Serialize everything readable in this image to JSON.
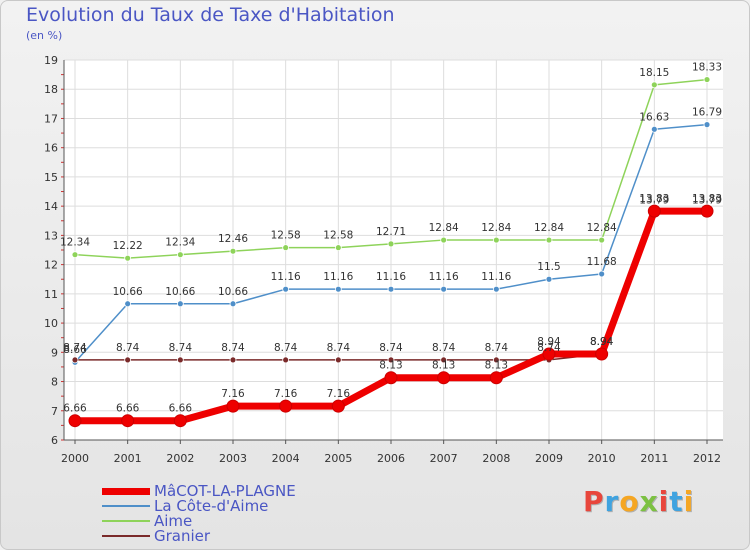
{
  "chart_data": {
    "type": "line",
    "title": "Evolution du Taux de Taxe d'Habitation",
    "subtitle": "(en %)",
    "x": [
      "2000",
      "2001",
      "2002",
      "2003",
      "2004",
      "2005",
      "2006",
      "2007",
      "2008",
      "2009",
      "2010",
      "2011",
      "2012"
    ],
    "ylim": [
      6,
      19
    ],
    "yticks": [
      6,
      7,
      8,
      9,
      10,
      11,
      12,
      13,
      14,
      15,
      16,
      17,
      18,
      19
    ],
    "grid": true,
    "legend_position": "bottom-left",
    "series": [
      {
        "name": "MâCOT-LA-PLAGNE",
        "color": "#ee0000",
        "values": [
          6.66,
          6.66,
          6.66,
          7.16,
          7.16,
          7.16,
          8.13,
          8.13,
          8.13,
          8.94,
          8.94,
          13.83,
          13.83
        ],
        "labels": [
          "6.66",
          "6.66",
          "6.66",
          "7.16",
          "7.16",
          "7.16",
          "8.13",
          "8.13",
          "8.13",
          "8.94",
          "8.94",
          "13.83",
          "13.83"
        ]
      },
      {
        "name": "La Côte-d'Aime",
        "color": "#4f8fc9",
        "values": [
          8.66,
          10.66,
          10.66,
          10.66,
          11.16,
          11.16,
          11.16,
          11.16,
          11.16,
          11.5,
          11.68,
          16.63,
          16.79
        ],
        "labels": [
          "8.66",
          "10.66",
          "10.66",
          "10.66",
          "11.16",
          "11.16",
          "11.16",
          "11.16",
          "11.16",
          "11.5",
          "11.68",
          "16.63",
          "16.79"
        ]
      },
      {
        "name": "Aime",
        "color": "#8ed35a",
        "values": [
          12.34,
          12.22,
          12.34,
          12.46,
          12.58,
          12.58,
          12.71,
          12.84,
          12.84,
          12.84,
          12.84,
          18.15,
          18.33
        ],
        "labels": [
          "12.34",
          "12.22",
          "12.34",
          "12.46",
          "12.58",
          "12.58",
          "12.71",
          "12.84",
          "12.84",
          "12.84",
          "12.84",
          "18.15",
          "18.33"
        ]
      },
      {
        "name": "Granier",
        "color": "#7a2a2a",
        "values": [
          8.74,
          8.74,
          8.74,
          8.74,
          8.74,
          8.74,
          8.74,
          8.74,
          8.74,
          8.74,
          8.94,
          13.79,
          13.79
        ],
        "labels": [
          "8.74",
          "8.74",
          "8.74",
          "8.74",
          "8.74",
          "8.74",
          "8.74",
          "8.74",
          "8.74",
          "8.74",
          "8.94",
          "13.79",
          "13.79"
        ]
      }
    ]
  },
  "logo": {
    "text": "Proxiti",
    "letter_colors": [
      "#e8463c",
      "#3fa3e0",
      "#f5a623",
      "#7cc142",
      "#e8463c",
      "#3fa3e0",
      "#f5a623"
    ]
  }
}
